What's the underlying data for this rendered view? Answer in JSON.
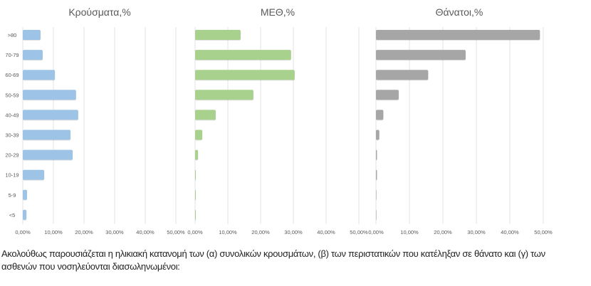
{
  "chart_data": [
    {
      "type": "bar",
      "orientation": "horizontal",
      "title": "Κρούσματα,%",
      "categories": [
        ">80",
        "70-79",
        "60-69",
        "50-59",
        "40-49",
        "30-39",
        "20-29",
        "10-19",
        "5-9",
        "<5"
      ],
      "values": [
        5.8,
        6.5,
        10.5,
        17.4,
        18.1,
        15.6,
        16.3,
        7.0,
        1.4,
        1.2
      ],
      "xlim": [
        0,
        50
      ],
      "xticks": [
        "0,00%",
        "10,00%",
        "20,00%",
        "30,00%",
        "40,00%",
        "50,00%"
      ],
      "color": "#9dc3e6",
      "grid": true
    },
    {
      "type": "bar",
      "orientation": "horizontal",
      "title": "ΜΕΘ,%",
      "categories": [
        ">80",
        "70-79",
        "60-69",
        "50-59",
        "40-49",
        "30-39",
        "20-29",
        "10-19",
        "5-9",
        "<5"
      ],
      "values": [
        13.9,
        29.3,
        30.4,
        17.8,
        6.3,
        2.2,
        0.9,
        0.1,
        0.1,
        0.1
      ],
      "xlim": [
        0,
        50
      ],
      "xticks": [
        "0,00%",
        "10,00%",
        "20,00%",
        "30,00%",
        "40,00%",
        "50,00%"
      ],
      "color": "#a9d18e",
      "grid": true
    },
    {
      "type": "bar",
      "orientation": "horizontal",
      "title": "Θάνατοι,%",
      "categories": [
        ">80",
        "70-79",
        "60-69",
        "50-59",
        "40-49",
        "30-39",
        "20-29",
        "10-19",
        "5-9",
        "<5"
      ],
      "values": [
        49.0,
        26.8,
        15.6,
        6.8,
        2.2,
        1.0,
        0.3,
        0.3,
        0,
        0
      ],
      "xlim": [
        0,
        50
      ],
      "xticks": [
        "0,00%",
        "10,00%",
        "20,00%",
        "30,00%",
        "40,00%",
        "50,00%"
      ],
      "color": "#a6a6a6",
      "grid": true
    }
  ],
  "caption": "Ακολούθως παρουσιάζεται η ηλικιακή κατανομή των (α) συνολικών κρουσμάτων, (β) των περιστατικών που κατέληξαν σε θάνατο και (γ) των ασθενών που νοσηλεύονται διασωληνωμένοι:"
}
